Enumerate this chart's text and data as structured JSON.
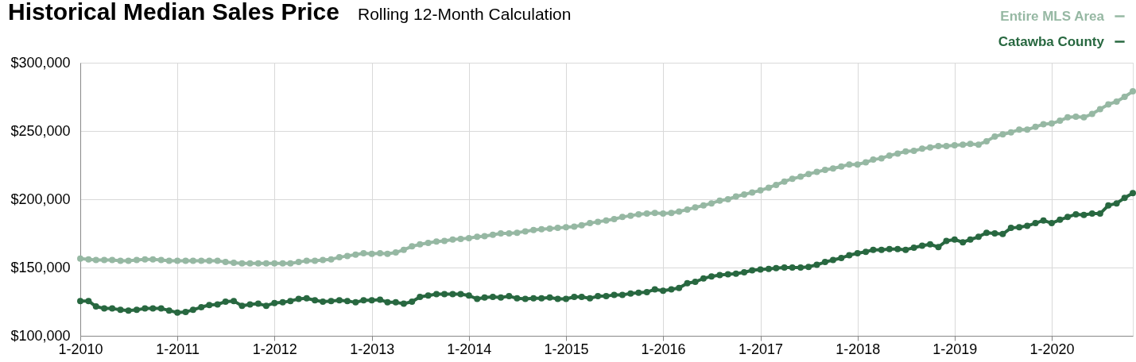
{
  "chart_data": {
    "type": "line",
    "title": "Historical Median Sales Price",
    "subtitle": "Rolling 12-Month Calculation",
    "x": [
      "2010-01",
      "2010-02",
      "2010-03",
      "2010-04",
      "2010-05",
      "2010-06",
      "2010-07",
      "2010-08",
      "2010-09",
      "2010-10",
      "2010-11",
      "2010-12",
      "2011-01",
      "2011-02",
      "2011-03",
      "2011-04",
      "2011-05",
      "2011-06",
      "2011-07",
      "2011-08",
      "2011-09",
      "2011-10",
      "2011-11",
      "2011-12",
      "2012-01",
      "2012-02",
      "2012-03",
      "2012-04",
      "2012-05",
      "2012-06",
      "2012-07",
      "2012-08",
      "2012-09",
      "2012-10",
      "2012-11",
      "2012-12",
      "2013-01",
      "2013-02",
      "2013-03",
      "2013-04",
      "2013-05",
      "2013-06",
      "2013-07",
      "2013-08",
      "2013-09",
      "2013-10",
      "2013-11",
      "2013-12",
      "2014-01",
      "2014-02",
      "2014-03",
      "2014-04",
      "2014-05",
      "2014-06",
      "2014-07",
      "2014-08",
      "2014-09",
      "2014-10",
      "2014-11",
      "2014-12",
      "2015-01",
      "2015-02",
      "2015-03",
      "2015-04",
      "2015-05",
      "2015-06",
      "2015-07",
      "2015-08",
      "2015-09",
      "2015-10",
      "2015-11",
      "2015-12",
      "2016-01",
      "2016-02",
      "2016-03",
      "2016-04",
      "2016-05",
      "2016-06",
      "2016-07",
      "2016-08",
      "2016-09",
      "2016-10",
      "2016-11",
      "2016-12",
      "2017-01",
      "2017-02",
      "2017-03",
      "2017-04",
      "2017-05",
      "2017-06",
      "2017-07",
      "2017-08",
      "2017-09",
      "2017-10",
      "2017-11",
      "2017-12",
      "2018-01",
      "2018-02",
      "2018-03",
      "2018-04",
      "2018-05",
      "2018-06",
      "2018-07",
      "2018-08",
      "2018-09",
      "2018-10",
      "2018-11",
      "2018-12",
      "2019-01",
      "2019-02",
      "2019-03",
      "2019-04",
      "2019-05",
      "2019-06",
      "2019-07",
      "2019-08",
      "2019-09",
      "2019-10",
      "2019-11",
      "2019-12",
      "2020-01",
      "2020-02",
      "2020-03",
      "2020-04",
      "2020-05",
      "2020-06",
      "2020-07",
      "2020-08",
      "2020-09",
      "2020-10",
      "2020-11"
    ],
    "xlim": [
      "2010-01",
      "2020-11"
    ],
    "xticks": [
      {
        "value": "2010-01",
        "label": "1-2010"
      },
      {
        "value": "2011-01",
        "label": "1-2011"
      },
      {
        "value": "2012-01",
        "label": "1-2012"
      },
      {
        "value": "2013-01",
        "label": "1-2013"
      },
      {
        "value": "2014-01",
        "label": "1-2014"
      },
      {
        "value": "2015-01",
        "label": "1-2015"
      },
      {
        "value": "2016-01",
        "label": "1-2016"
      },
      {
        "value": "2017-01",
        "label": "1-2017"
      },
      {
        "value": "2018-01",
        "label": "1-2018"
      },
      {
        "value": "2019-01",
        "label": "1-2019"
      },
      {
        "value": "2020-01",
        "label": "1-2020"
      }
    ],
    "ylim": [
      100000,
      300000
    ],
    "yticks": [
      {
        "value": 100000,
        "label": "$100,000"
      },
      {
        "value": 150000,
        "label": "$150,000"
      },
      {
        "value": 200000,
        "label": "$200,000"
      },
      {
        "value": 250000,
        "label": "$250,000"
      },
      {
        "value": 300000,
        "label": "$300,000"
      }
    ],
    "series": [
      {
        "name": "Entire MLS Area",
        "color": "#96b8a3",
        "values": [
          156500,
          156000,
          155500,
          155500,
          155500,
          155000,
          155000,
          155500,
          156000,
          156000,
          155500,
          155000,
          155000,
          155000,
          155000,
          155000,
          155000,
          155000,
          154000,
          153500,
          153000,
          153000,
          153000,
          153000,
          153000,
          153000,
          153000,
          154000,
          155000,
          155000,
          155500,
          156000,
          157500,
          158500,
          159500,
          160500,
          160000,
          160500,
          160000,
          161000,
          163000,
          165500,
          167000,
          168000,
          169000,
          169500,
          170500,
          171000,
          171500,
          172500,
          173000,
          174000,
          175000,
          175000,
          175500,
          176500,
          177500,
          178000,
          178500,
          179000,
          179500,
          180000,
          181000,
          182500,
          183500,
          184500,
          185500,
          187000,
          188000,
          189000,
          189500,
          190000,
          189500,
          190000,
          191000,
          192500,
          194000,
          195500,
          197000,
          199000,
          200000,
          202000,
          203500,
          205000,
          206500,
          208500,
          210500,
          213000,
          215000,
          216500,
          218500,
          220000,
          221500,
          222500,
          224000,
          225500,
          225500,
          227000,
          229000,
          230000,
          232000,
          233500,
          235000,
          235500,
          237000,
          238000,
          239000,
          239000,
          239500,
          240000,
          240500,
          240000,
          242500,
          246000,
          247500,
          249000,
          251000,
          251000,
          253000,
          255000,
          255500,
          257500,
          260000,
          260500,
          260000,
          262500,
          266000,
          269500,
          271500,
          275000,
          279000
        ]
      },
      {
        "name": "Catawba County",
        "color": "#286840",
        "values": [
          125500,
          125500,
          121500,
          120000,
          120000,
          119000,
          118500,
          119000,
          120000,
          120000,
          120000,
          118500,
          117000,
          117500,
          119000,
          121000,
          122500,
          123000,
          125000,
          125500,
          122000,
          123000,
          123500,
          122000,
          124000,
          124500,
          125500,
          127000,
          127500,
          126000,
          125000,
          125500,
          126000,
          125500,
          124500,
          126000,
          126000,
          126500,
          124500,
          124500,
          123500,
          125000,
          128500,
          129500,
          130500,
          130500,
          130500,
          130500,
          129500,
          127000,
          128000,
          128500,
          128000,
          129000,
          127500,
          127000,
          127500,
          127500,
          128000,
          127000,
          127000,
          128500,
          128500,
          127500,
          129000,
          129000,
          130000,
          130000,
          131000,
          131500,
          132000,
          134000,
          133000,
          134000,
          135000,
          138500,
          139500,
          142000,
          143500,
          144500,
          145000,
          145500,
          146500,
          148000,
          148500,
          149000,
          149500,
          150000,
          150000,
          150000,
          150500,
          152000,
          154000,
          155500,
          157000,
          159000,
          160500,
          161500,
          163000,
          163000,
          163500,
          163500,
          163000,
          164500,
          166000,
          167000,
          165000,
          169500,
          170500,
          168500,
          170500,
          172500,
          175500,
          175000,
          174500,
          179000,
          179500,
          180500,
          182500,
          184500,
          182500,
          185000,
          187000,
          189000,
          188500,
          189500,
          189500,
          195500,
          197000,
          201000,
          204500
        ]
      }
    ],
    "grid": true,
    "legend": "top right",
    "marker": "circle",
    "line_style": "solid"
  }
}
